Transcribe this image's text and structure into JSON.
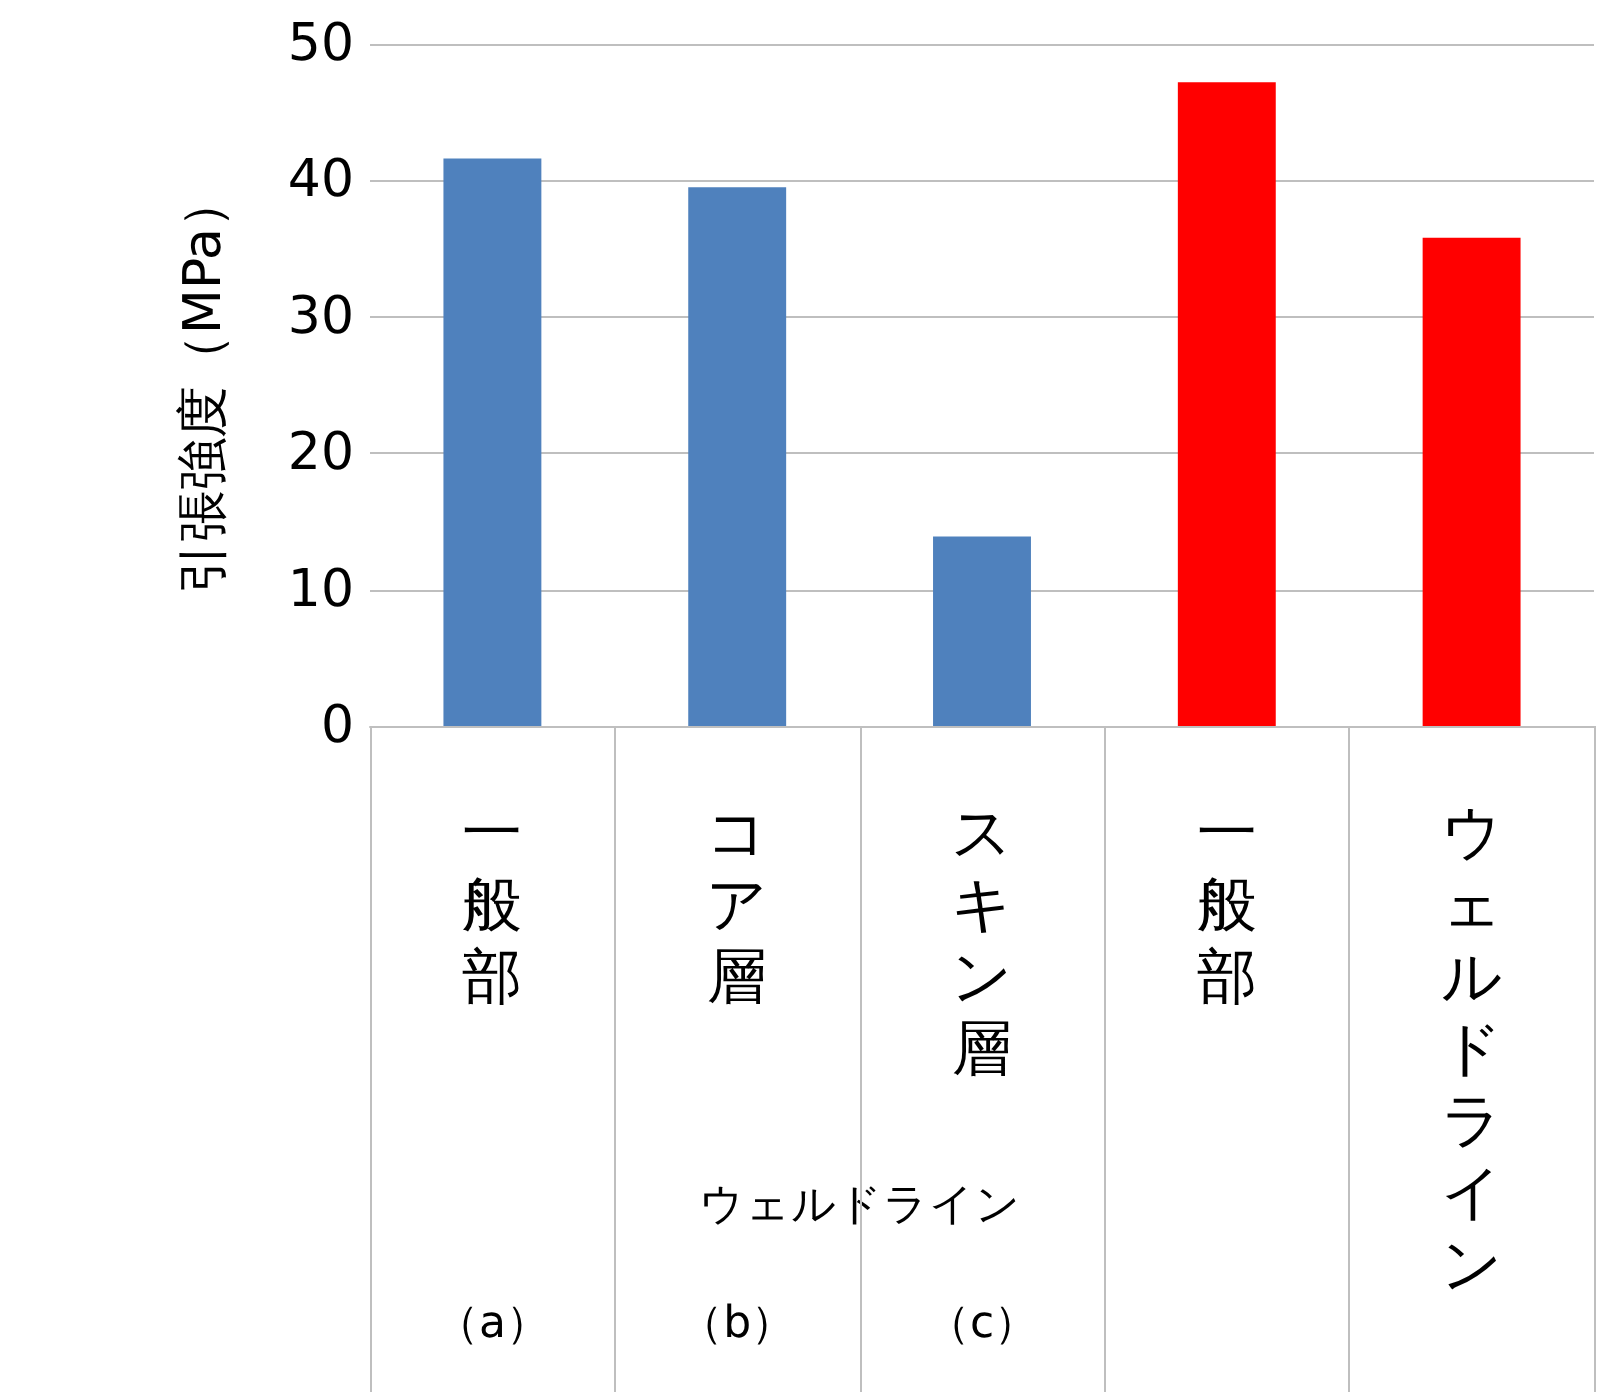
{
  "chart_data": {
    "type": "bar",
    "ylabel": "引張強度（MPa）",
    "categories": [
      "一般部",
      "コア層",
      "スキン層",
      "一般部",
      "ウェルドライン"
    ],
    "values": [
      41.6,
      39.5,
      13.9,
      47.2,
      35.8
    ],
    "colors": [
      "#4f81bd",
      "#4f81bd",
      "#4f81bd",
      "#ff0000",
      "#ff0000"
    ],
    "ylim": [
      0,
      50
    ],
    "yticks": [
      0,
      10,
      20,
      30,
      40,
      50
    ],
    "grid": "y",
    "annotations": [
      "ウェルドライン",
      "（a）",
      "（b）",
      "（c）"
    ]
  }
}
